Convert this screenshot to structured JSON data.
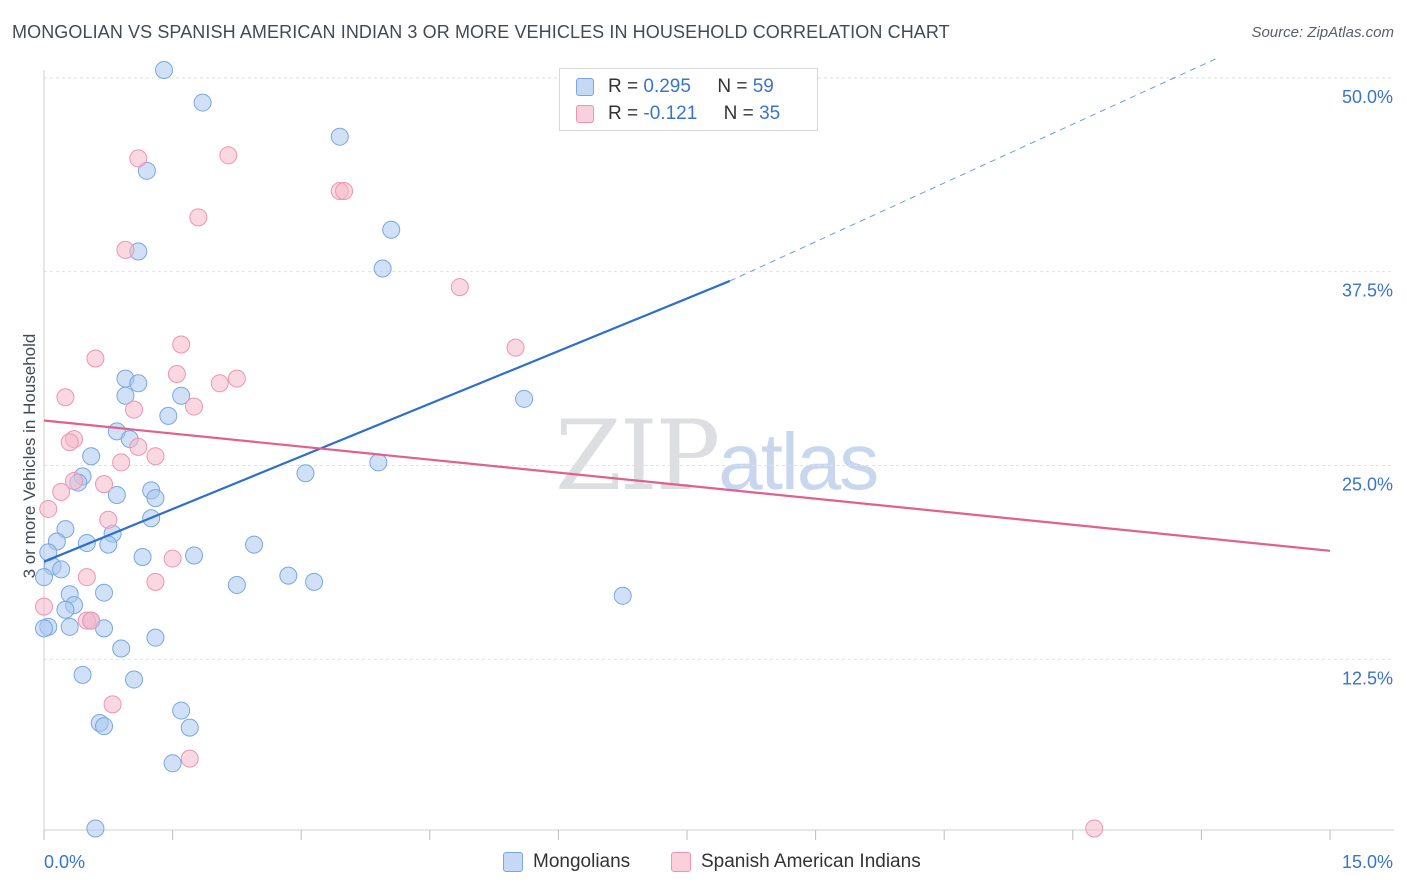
{
  "title": "MONGOLIAN VS SPANISH AMERICAN INDIAN 3 OR MORE VEHICLES IN HOUSEHOLD CORRELATION CHART",
  "source": "Source: ZipAtlas.com",
  "watermark": {
    "zip": "ZIP",
    "atlas": "atlas"
  },
  "legend_top": [
    {
      "r_label": "R =",
      "r": "0.295",
      "n_label": "N =",
      "n": "59",
      "color": "#a9c8f0"
    },
    {
      "r_label": "R =",
      "r": "-0.121",
      "n_label": "N =",
      "n": "35",
      "color": "#f6b8cb"
    }
  ],
  "legend_bottom": [
    {
      "label": "Mongolians",
      "color": "#a9c8f0"
    },
    {
      "label": "Spanish American Indians",
      "color": "#f6b8cb"
    }
  ],
  "chart_data": {
    "type": "scatter",
    "ylabel": "3 or more Vehicles in Household",
    "xlim": [
      0,
      15
    ],
    "ylim": [
      1.5,
      50.5
    ],
    "x_tick_labels": [
      "0.0%",
      "15.0%"
    ],
    "y_ticks": [
      12.5,
      25.0,
      37.5,
      50.0
    ],
    "y_tick_labels": [
      "12.5%",
      "25.0%",
      "37.5%",
      "50.0%"
    ],
    "grid": true,
    "legend_position": "top-center",
    "series": [
      {
        "name": "Mongolians",
        "color": "#a9c8f0",
        "stroke": "#7ba6e0",
        "trend": {
          "x0": 0.0,
          "y0": 18.8,
          "x1": 8.0,
          "y1": 36.9,
          "dash_to_x": 13.7,
          "dash_to_y": 51.3,
          "color": "#2f6fcc"
        },
        "points": [
          [
            1.4,
            50.5
          ],
          [
            1.85,
            48.4
          ],
          [
            3.45,
            46.2
          ],
          [
            1.2,
            44.0
          ],
          [
            4.05,
            40.2
          ],
          [
            1.1,
            38.8
          ],
          [
            3.95,
            37.7
          ],
          [
            0.95,
            30.6
          ],
          [
            1.1,
            30.3
          ],
          [
            0.95,
            29.5
          ],
          [
            1.6,
            29.5
          ],
          [
            5.6,
            29.3
          ],
          [
            1.45,
            28.2
          ],
          [
            0.85,
            27.2
          ],
          [
            1.0,
            26.7
          ],
          [
            0.55,
            25.6
          ],
          [
            3.9,
            25.2
          ],
          [
            3.05,
            24.5
          ],
          [
            0.45,
            24.3
          ],
          [
            0.4,
            23.9
          ],
          [
            1.25,
            23.4
          ],
          [
            0.85,
            23.1
          ],
          [
            1.3,
            22.9
          ],
          [
            1.25,
            21.6
          ],
          [
            0.25,
            20.9
          ],
          [
            0.8,
            20.6
          ],
          [
            0.5,
            20.0
          ],
          [
            0.15,
            20.1
          ],
          [
            0.75,
            19.9
          ],
          [
            2.45,
            19.9
          ],
          [
            0.05,
            19.4
          ],
          [
            1.15,
            19.1
          ],
          [
            1.75,
            19.2
          ],
          [
            0.1,
            18.5
          ],
          [
            0.2,
            18.3
          ],
          [
            2.85,
            17.9
          ],
          [
            0.0,
            17.8
          ],
          [
            3.15,
            17.5
          ],
          [
            2.25,
            17.3
          ],
          [
            0.7,
            16.8
          ],
          [
            6.75,
            16.6
          ],
          [
            0.3,
            16.7
          ],
          [
            0.35,
            16.0
          ],
          [
            0.25,
            15.7
          ],
          [
            0.55,
            15.0
          ],
          [
            0.05,
            14.6
          ],
          [
            0.3,
            14.6
          ],
          [
            0.7,
            14.5
          ],
          [
            1.3,
            13.9
          ],
          [
            0.9,
            13.2
          ],
          [
            0.45,
            11.5
          ],
          [
            1.05,
            11.2
          ],
          [
            1.6,
            9.2
          ],
          [
            0.65,
            8.4
          ],
          [
            0.7,
            8.2
          ],
          [
            1.7,
            8.1
          ],
          [
            1.5,
            5.8
          ],
          [
            0.6,
            1.6
          ],
          [
            0.0,
            14.5
          ]
        ]
      },
      {
        "name": "Spanish American Indians",
        "color": "#f6b8cb",
        "stroke": "#ee94b2",
        "trend": {
          "x0": 0.0,
          "y0": 27.9,
          "x1": 15.0,
          "y1": 19.5,
          "color": "#e0608e"
        },
        "points": [
          [
            2.15,
            45.0
          ],
          [
            1.1,
            44.8
          ],
          [
            3.45,
            42.7
          ],
          [
            3.5,
            42.7
          ],
          [
            1.8,
            41.0
          ],
          [
            0.95,
            38.9
          ],
          [
            4.85,
            36.5
          ],
          [
            5.5,
            32.6
          ],
          [
            1.6,
            32.8
          ],
          [
            0.6,
            31.9
          ],
          [
            1.55,
            30.9
          ],
          [
            2.25,
            30.6
          ],
          [
            2.05,
            30.3
          ],
          [
            0.25,
            29.4
          ],
          [
            1.75,
            28.8
          ],
          [
            1.05,
            28.6
          ],
          [
            0.35,
            26.7
          ],
          [
            0.3,
            26.5
          ],
          [
            1.1,
            26.2
          ],
          [
            1.3,
            25.6
          ],
          [
            0.9,
            25.2
          ],
          [
            0.35,
            24.0
          ],
          [
            0.7,
            23.8
          ],
          [
            0.2,
            23.3
          ],
          [
            0.05,
            22.2
          ],
          [
            0.75,
            21.5
          ],
          [
            1.5,
            19.0
          ],
          [
            0.5,
            17.8
          ],
          [
            1.3,
            17.5
          ],
          [
            0.5,
            15.0
          ],
          [
            0.0,
            15.9
          ],
          [
            0.8,
            9.6
          ],
          [
            1.7,
            6.1
          ],
          [
            12.25,
            1.6
          ],
          [
            0.55,
            15.0
          ]
        ]
      }
    ]
  }
}
